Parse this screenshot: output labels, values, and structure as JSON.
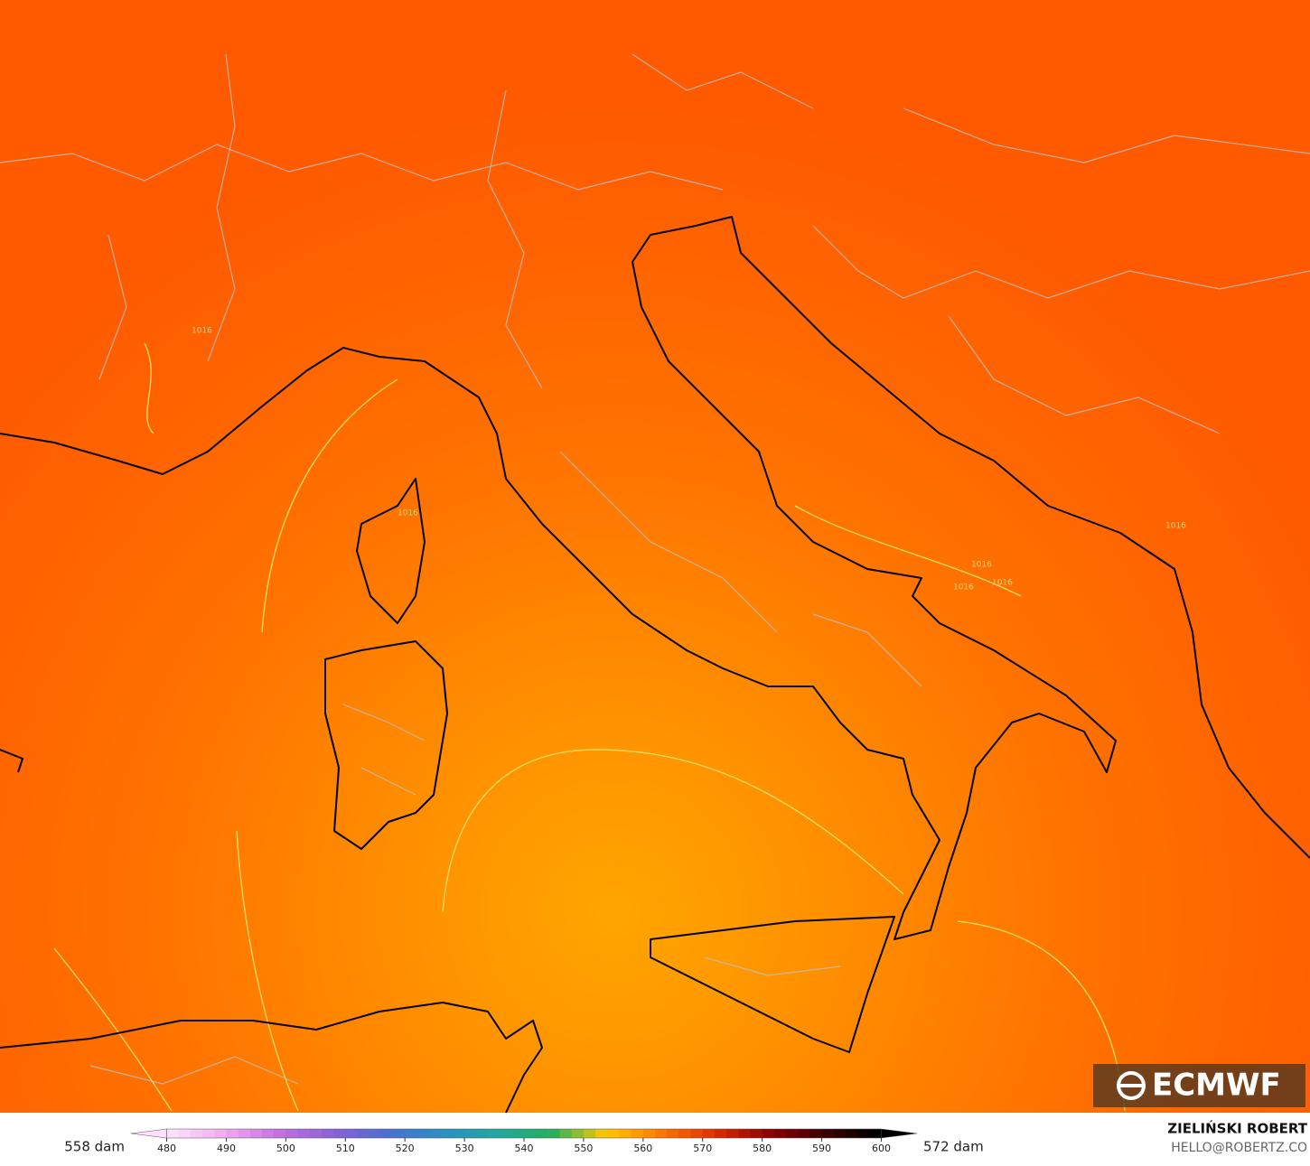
{
  "map": {
    "isobar_labels": [
      "1016",
      "1016",
      "1016",
      "1016",
      "1016",
      "1016"
    ]
  },
  "colorbar": {
    "min_label": "558 dam",
    "max_label": "572 dam",
    "lim": [
      474,
      606
    ],
    "ticks": [
      480,
      490,
      500,
      510,
      520,
      530,
      540,
      550,
      560,
      570,
      580,
      590,
      600
    ],
    "colors": [
      "#fde0ff",
      "#f0a8f0",
      "#c070e0",
      "#8a60d8",
      "#4a70d0",
      "#2a90c0",
      "#20a8a0",
      "#20b060",
      "#ffc800",
      "#ff7a00",
      "#e03000",
      "#900000",
      "#400000",
      "#000000"
    ]
  },
  "branding": {
    "logo": "ECMWF",
    "author": "ZIELIŃSKI ROBERT",
    "contact": "HELLO@ROBERTZ.CO"
  }
}
